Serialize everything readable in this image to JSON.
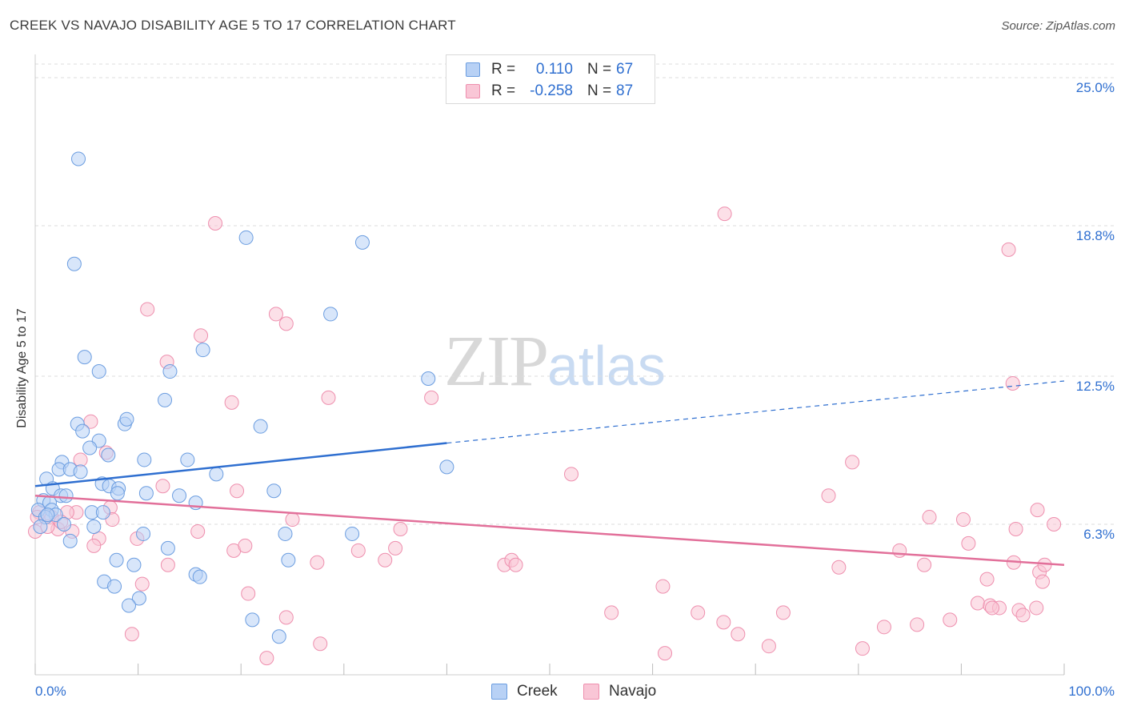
{
  "title": "CREEK VS NAVAJO DISABILITY AGE 5 TO 17 CORRELATION CHART",
  "source": "Source: ZipAtlas.com",
  "watermark": {
    "zip": "ZIP",
    "atlas": "atlas"
  },
  "stats": [
    {
      "r_label": "R =",
      "r_value": "0.110",
      "n_label": "N =",
      "n_value": "67"
    },
    {
      "r_label": "R =",
      "r_value": "-0.258",
      "n_label": "N =",
      "n_value": "87"
    }
  ],
  "legend": [
    {
      "label": "Creek"
    },
    {
      "label": "Navajo"
    }
  ],
  "colors": {
    "creek_fill": "#b8d1f5",
    "creek_stroke": "#6b9de0",
    "creek_line": "#2f6fd0",
    "navajo_fill": "#f9c6d6",
    "navajo_stroke": "#ee8fae",
    "navajo_line": "#e2709a",
    "tick_label": "#2f6fd0",
    "grid": "#dddddd"
  },
  "chart_data": {
    "type": "scatter",
    "title": "CREEK VS NAVAJO DISABILITY AGE 5 TO 17 CORRELATION CHART",
    "xlabel": "",
    "ylabel": "Disability Age 5 to 17",
    "xlim": [
      0,
      100
    ],
    "ylim": [
      0,
      25.6
    ],
    "x_tick_labels": [
      "0.0%",
      "100.0%"
    ],
    "y_ticks": [
      6.3,
      12.5,
      18.8,
      25.0
    ],
    "y_tick_labels": [
      "6.3%",
      "12.5%",
      "18.8%",
      "25.0%"
    ],
    "grid": "horizontal dashed",
    "legend_position": "bottom-center",
    "series": [
      {
        "name": "Creek",
        "r": 0.11,
        "n": 67,
        "trend": {
          "x0": 0,
          "y0": 7.9,
          "x1": 40,
          "y1": 9.7,
          "dashed_to_x": 100,
          "dashed_to_y": 12.3
        },
        "points": [
          [
            4.2,
            21.6
          ],
          [
            3.8,
            17.2
          ],
          [
            20.5,
            18.3
          ],
          [
            31.8,
            18.1
          ],
          [
            28.7,
            15.1
          ],
          [
            4.8,
            13.3
          ],
          [
            6.2,
            12.7
          ],
          [
            13.1,
            12.7
          ],
          [
            16.3,
            13.6
          ],
          [
            38.2,
            12.4
          ],
          [
            12.6,
            11.5
          ],
          [
            4.1,
            10.5
          ],
          [
            8.7,
            10.5
          ],
          [
            8.9,
            10.7
          ],
          [
            21.9,
            10.4
          ],
          [
            4.6,
            10.2
          ],
          [
            6.2,
            9.8
          ],
          [
            5.3,
            9.5
          ],
          [
            7.1,
            9.2
          ],
          [
            10.6,
            9.0
          ],
          [
            14.8,
            9.0
          ],
          [
            2.6,
            8.9
          ],
          [
            2.3,
            8.6
          ],
          [
            3.4,
            8.6
          ],
          [
            4.4,
            8.5
          ],
          [
            17.6,
            8.4
          ],
          [
            40.0,
            8.7
          ],
          [
            1.1,
            8.2
          ],
          [
            6.5,
            8.0
          ],
          [
            7.2,
            7.9
          ],
          [
            8.1,
            7.8
          ],
          [
            1.7,
            7.8
          ],
          [
            10.8,
            7.6
          ],
          [
            23.2,
            7.7
          ],
          [
            14.0,
            7.5
          ],
          [
            2.5,
            7.5
          ],
          [
            0.8,
            7.3
          ],
          [
            1.4,
            7.2
          ],
          [
            15.6,
            7.2
          ],
          [
            0.3,
            6.9
          ],
          [
            1.6,
            6.9
          ],
          [
            2.0,
            6.7
          ],
          [
            5.5,
            6.8
          ],
          [
            6.6,
            6.8
          ],
          [
            1.0,
            6.6
          ],
          [
            2.8,
            6.3
          ],
          [
            5.7,
            6.2
          ],
          [
            24.3,
            5.9
          ],
          [
            30.8,
            5.9
          ],
          [
            10.5,
            5.9
          ],
          [
            3.4,
            5.6
          ],
          [
            12.9,
            5.3
          ],
          [
            7.9,
            4.8
          ],
          [
            9.6,
            4.6
          ],
          [
            24.6,
            4.8
          ],
          [
            15.6,
            4.2
          ],
          [
            16.0,
            4.1
          ],
          [
            6.7,
            3.9
          ],
          [
            7.7,
            3.7
          ],
          [
            10.1,
            3.2
          ],
          [
            9.1,
            2.9
          ],
          [
            21.1,
            2.3
          ],
          [
            23.7,
            1.6
          ],
          [
            0.5,
            6.2
          ],
          [
            1.2,
            6.7
          ],
          [
            8.0,
            7.6
          ],
          [
            3.0,
            7.5
          ]
        ]
      },
      {
        "name": "Navajo",
        "r": -0.258,
        "n": 87,
        "trend": {
          "x0": 0,
          "y0": 7.5,
          "x1": 100,
          "y1": 4.6
        },
        "points": [
          [
            17.5,
            18.9
          ],
          [
            67.0,
            19.3
          ],
          [
            94.6,
            17.8
          ],
          [
            10.9,
            15.3
          ],
          [
            23.4,
            15.1
          ],
          [
            24.4,
            14.7
          ],
          [
            16.1,
            14.2
          ],
          [
            12.8,
            13.1
          ],
          [
            95.0,
            12.2
          ],
          [
            19.1,
            11.4
          ],
          [
            28.5,
            11.6
          ],
          [
            38.5,
            11.6
          ],
          [
            5.4,
            10.6
          ],
          [
            6.9,
            9.3
          ],
          [
            4.4,
            9.0
          ],
          [
            79.4,
            8.9
          ],
          [
            52.1,
            8.4
          ],
          [
            12.4,
            7.9
          ],
          [
            19.6,
            7.7
          ],
          [
            77.1,
            7.5
          ],
          [
            7.3,
            7.0
          ],
          [
            4.0,
            6.8
          ],
          [
            3.1,
            6.8
          ],
          [
            1.6,
            6.6
          ],
          [
            0.4,
            6.8
          ],
          [
            0.2,
            6.6
          ],
          [
            2.2,
            6.1
          ],
          [
            7.5,
            6.5
          ],
          [
            25.0,
            6.5
          ],
          [
            35.5,
            6.1
          ],
          [
            15.8,
            6.0
          ],
          [
            86.9,
            6.6
          ],
          [
            90.2,
            6.5
          ],
          [
            97.4,
            6.9
          ],
          [
            95.3,
            6.1
          ],
          [
            99.0,
            6.3
          ],
          [
            6.2,
            5.7
          ],
          [
            9.9,
            5.7
          ],
          [
            5.7,
            5.4
          ],
          [
            19.3,
            5.2
          ],
          [
            20.4,
            5.4
          ],
          [
            31.4,
            5.2
          ],
          [
            35.0,
            5.3
          ],
          [
            84.0,
            5.2
          ],
          [
            90.7,
            5.5
          ],
          [
            12.9,
            4.6
          ],
          [
            27.4,
            4.7
          ],
          [
            34.0,
            4.8
          ],
          [
            45.6,
            4.6
          ],
          [
            46.3,
            4.8
          ],
          [
            46.7,
            4.6
          ],
          [
            78.1,
            4.5
          ],
          [
            86.4,
            4.6
          ],
          [
            95.1,
            4.7
          ],
          [
            97.6,
            4.3
          ],
          [
            98.1,
            4.6
          ],
          [
            10.4,
            3.8
          ],
          [
            61.0,
            3.7
          ],
          [
            20.7,
            3.4
          ],
          [
            92.5,
            4.0
          ],
          [
            97.9,
            3.9
          ],
          [
            91.6,
            3.0
          ],
          [
            92.8,
            2.9
          ],
          [
            93.7,
            2.8
          ],
          [
            95.6,
            2.7
          ],
          [
            96.0,
            2.5
          ],
          [
            97.3,
            2.8
          ],
          [
            56.0,
            2.6
          ],
          [
            64.4,
            2.6
          ],
          [
            66.9,
            2.2
          ],
          [
            68.3,
            1.7
          ],
          [
            71.3,
            1.2
          ],
          [
            72.7,
            2.6
          ],
          [
            82.5,
            2.0
          ],
          [
            85.7,
            2.1
          ],
          [
            88.9,
            2.3
          ],
          [
            93.0,
            2.8
          ],
          [
            24.4,
            2.4
          ],
          [
            9.4,
            1.7
          ],
          [
            27.7,
            1.3
          ],
          [
            22.5,
            0.7
          ],
          [
            61.2,
            0.9
          ],
          [
            80.4,
            1.1
          ],
          [
            0.0,
            6.0
          ],
          [
            1.2,
            6.2
          ],
          [
            2.5,
            6.4
          ],
          [
            3.6,
            6.0
          ]
        ]
      }
    ]
  }
}
